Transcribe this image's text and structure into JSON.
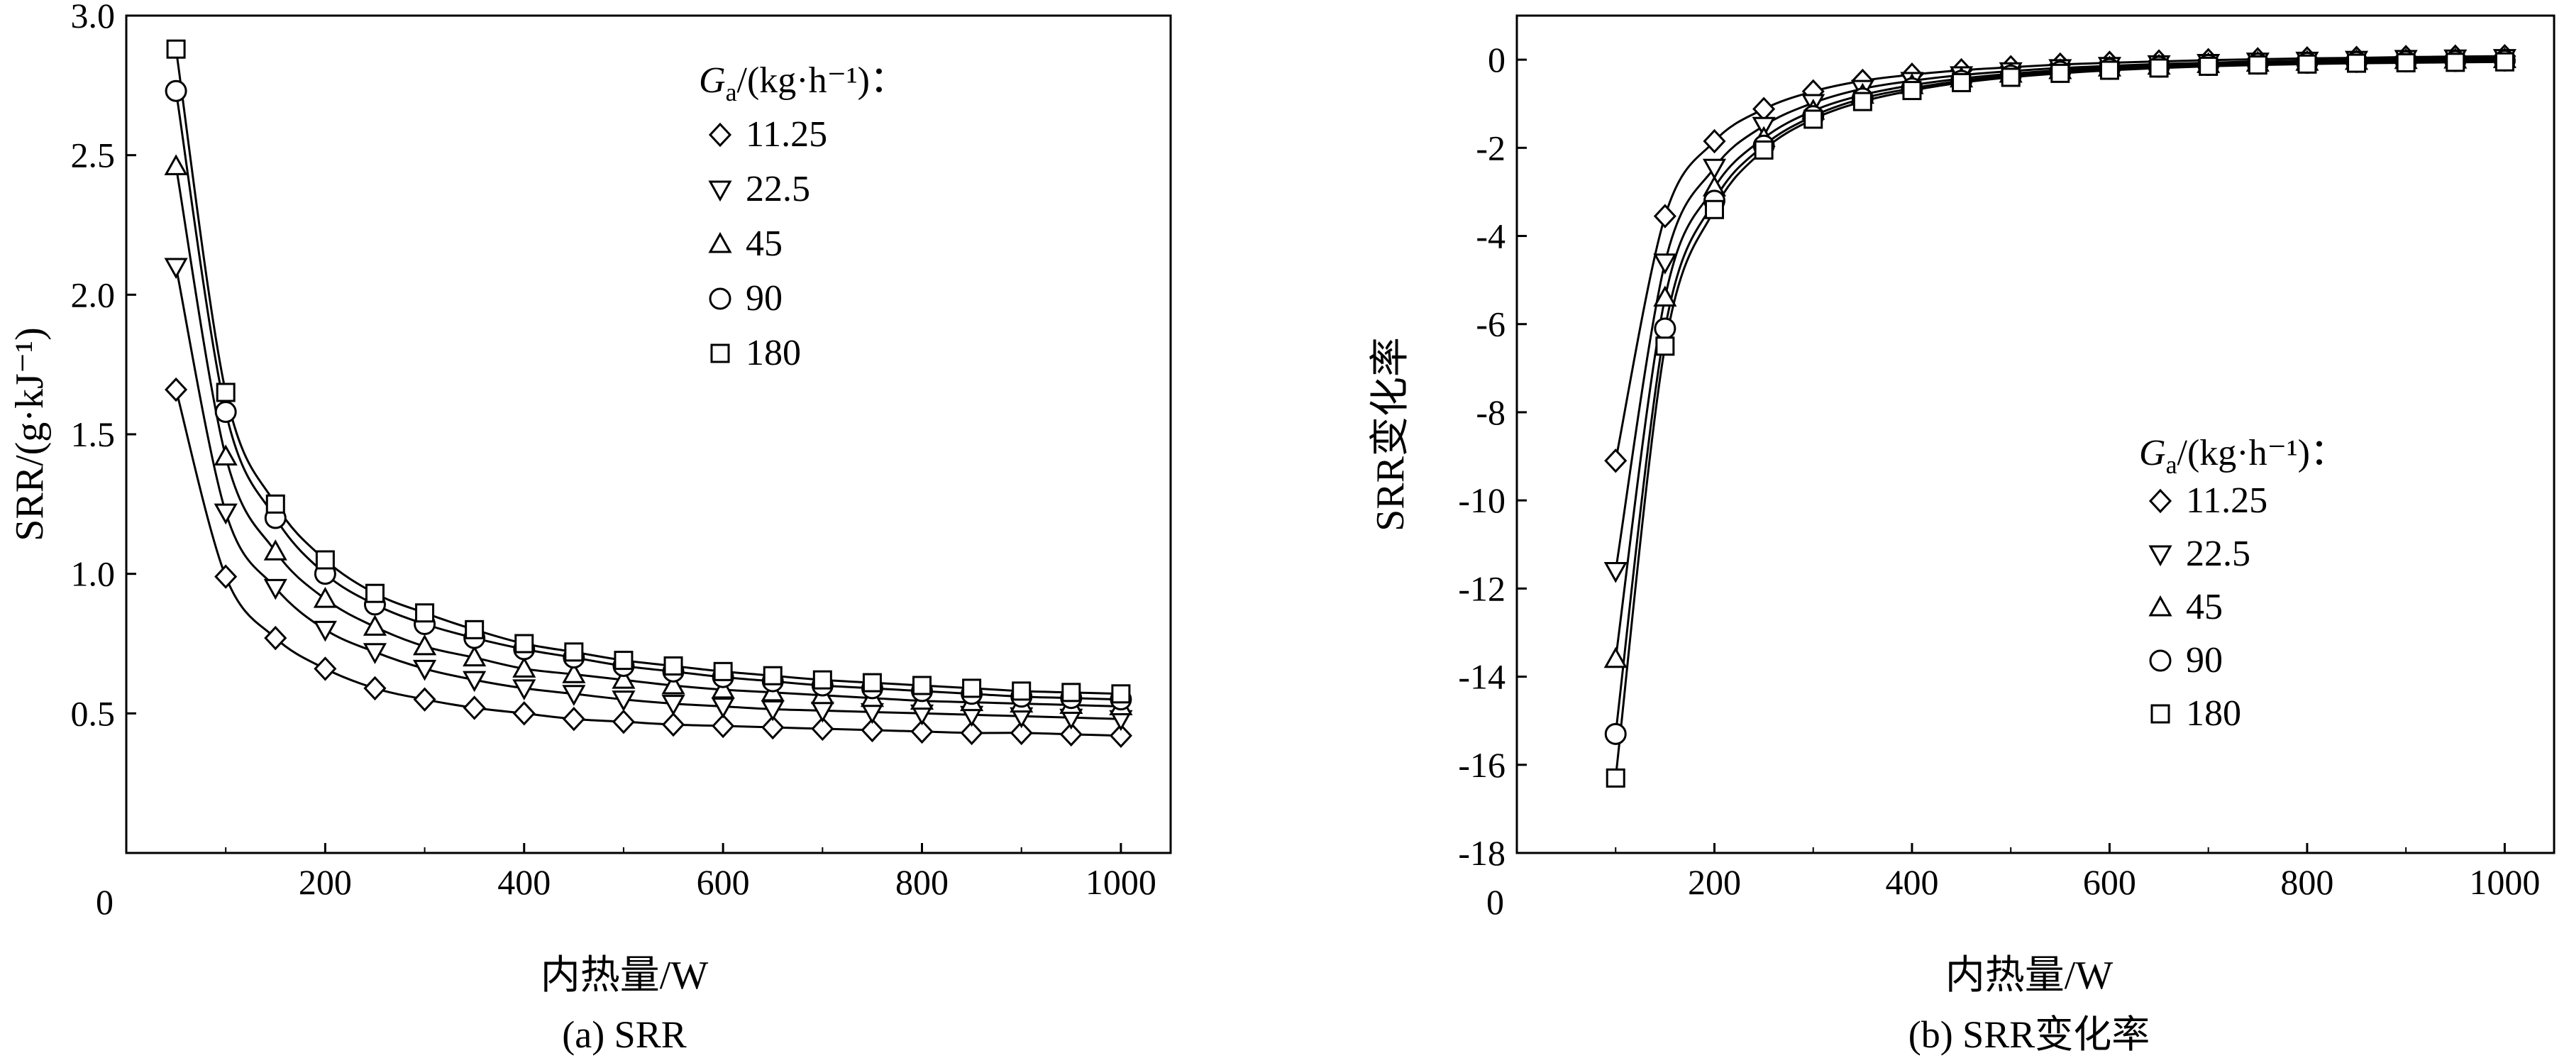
{
  "chart_data": [
    {
      "id": "a",
      "type": "line",
      "caption": "(a) SRR",
      "xlabel": "内热量/W",
      "ylabel": "SRR/(g·kJ⁻¹)",
      "xlim": [
        0,
        1050
      ],
      "ylim": [
        0.0,
        3.0
      ],
      "x_origin_label": "0",
      "xticks": [
        200,
        400,
        600,
        800,
        1000
      ],
      "xtick_labels": [
        "200",
        "400",
        "600",
        "800",
        "1000"
      ],
      "yticks": [
        0.5,
        1.0,
        1.5,
        2.0,
        2.5,
        3.0
      ],
      "ytick_labels": [
        "0.5",
        "1.0",
        "1.5",
        "2.0",
        "2.5",
        "3.0"
      ],
      "legend": {
        "title_main": "G",
        "title_sub": "a",
        "title_rest": "/(kg·h⁻¹)：",
        "placement": "top-right"
      },
      "x": [
        50,
        100,
        150,
        200,
        250,
        300,
        350,
        400,
        450,
        500,
        550,
        600,
        650,
        700,
        750,
        800,
        850,
        900,
        950,
        1000
      ],
      "series": [
        {
          "name": "11.25",
          "marker": "diamond",
          "values": [
            1.66,
            0.99,
            0.77,
            0.66,
            0.59,
            0.55,
            0.52,
            0.5,
            0.48,
            0.47,
            0.46,
            0.455,
            0.45,
            0.445,
            0.44,
            0.435,
            0.43,
            0.43,
            0.425,
            0.42
          ]
        },
        {
          "name": "22.5",
          "marker": "triangle-down",
          "values": [
            2.1,
            1.22,
            0.95,
            0.8,
            0.72,
            0.66,
            0.62,
            0.59,
            0.57,
            0.55,
            0.535,
            0.525,
            0.515,
            0.51,
            0.505,
            0.5,
            0.495,
            0.49,
            0.485,
            0.48
          ]
        },
        {
          "name": "45",
          "marker": "triangle-up",
          "values": [
            2.46,
            1.42,
            1.08,
            0.91,
            0.81,
            0.74,
            0.7,
            0.66,
            0.64,
            0.62,
            0.6,
            0.585,
            0.575,
            0.565,
            0.555,
            0.545,
            0.54,
            0.535,
            0.53,
            0.525
          ]
        },
        {
          "name": "90",
          "marker": "circle",
          "values": [
            2.73,
            1.58,
            1.2,
            1.0,
            0.89,
            0.82,
            0.77,
            0.73,
            0.7,
            0.67,
            0.65,
            0.63,
            0.615,
            0.6,
            0.59,
            0.58,
            0.57,
            0.56,
            0.555,
            0.55
          ]
        },
        {
          "name": "180",
          "marker": "square",
          "values": [
            2.88,
            1.65,
            1.25,
            1.05,
            0.93,
            0.86,
            0.8,
            0.75,
            0.72,
            0.69,
            0.67,
            0.65,
            0.635,
            0.62,
            0.61,
            0.6,
            0.59,
            0.58,
            0.575,
            0.57
          ]
        }
      ]
    },
    {
      "id": "b",
      "type": "line",
      "caption": "(b) SRR变化率",
      "xlabel": "内热量/W",
      "ylabel": "SRR变化率",
      "xlim": [
        0,
        1050
      ],
      "ylim": [
        -18,
        1
      ],
      "x_origin_label": "0",
      "xticks": [
        200,
        400,
        600,
        800,
        1000
      ],
      "xtick_labels": [
        "200",
        "400",
        "600",
        "800",
        "1000"
      ],
      "yticks": [
        -18,
        -16,
        -14,
        -12,
        -10,
        -8,
        -6,
        -4,
        -2,
        0
      ],
      "ytick_labels": [
        "-18",
        "-16",
        "-14",
        "-12",
        "-10",
        "-8",
        "-6",
        "-4",
        "-2",
        "0"
      ],
      "legend": {
        "title_main": "G",
        "title_sub": "a",
        "title_rest": "/(kg·h⁻¹)：",
        "placement": "center-right"
      },
      "x": [
        100,
        150,
        200,
        250,
        300,
        350,
        400,
        450,
        500,
        550,
        600,
        650,
        700,
        750,
        800,
        850,
        900,
        950,
        1000
      ],
      "series": [
        {
          "name": "11.25",
          "marker": "diamond",
          "values": [
            -9.1,
            -3.55,
            -1.85,
            -1.12,
            -0.72,
            -0.48,
            -0.34,
            -0.24,
            -0.17,
            -0.11,
            -0.07,
            -0.04,
            -0.01,
            0.01,
            0.03,
            0.04,
            0.06,
            0.07,
            0.08
          ]
        },
        {
          "name": "22.5",
          "marker": "triangle-down",
          "values": [
            -11.6,
            -4.6,
            -2.45,
            -1.5,
            -0.98,
            -0.66,
            -0.48,
            -0.35,
            -0.26,
            -0.19,
            -0.14,
            -0.1,
            -0.07,
            -0.04,
            -0.02,
            0.0,
            0.02,
            0.03,
            0.04
          ]
        },
        {
          "name": "45",
          "marker": "triangle-up",
          "values": [
            -13.6,
            -5.4,
            -2.9,
            -1.78,
            -1.16,
            -0.8,
            -0.58,
            -0.43,
            -0.32,
            -0.24,
            -0.18,
            -0.14,
            -0.1,
            -0.07,
            -0.05,
            -0.03,
            -0.01,
            0.0,
            0.01
          ]
        },
        {
          "name": "90",
          "marker": "circle",
          "values": [
            -15.3,
            -6.1,
            -3.2,
            -1.95,
            -1.28,
            -0.88,
            -0.65,
            -0.48,
            -0.36,
            -0.27,
            -0.21,
            -0.16,
            -0.12,
            -0.09,
            -0.07,
            -0.05,
            -0.04,
            -0.03,
            -0.02
          ]
        },
        {
          "name": "180",
          "marker": "square",
          "values": [
            -16.3,
            -6.5,
            -3.4,
            -2.05,
            -1.35,
            -0.95,
            -0.7,
            -0.52,
            -0.4,
            -0.31,
            -0.24,
            -0.19,
            -0.15,
            -0.12,
            -0.1,
            -0.08,
            -0.07,
            -0.06,
            -0.05
          ]
        }
      ]
    }
  ]
}
